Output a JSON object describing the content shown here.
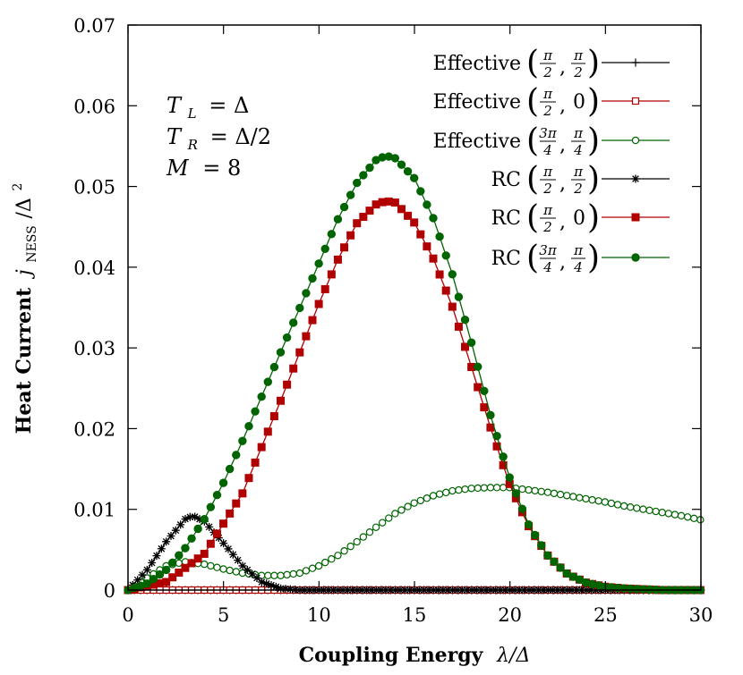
{
  "chart_data": {
    "type": "line",
    "title": "",
    "xlabel": "Coupling Energy λ/Δ",
    "ylabel": "Heat Current j_NESS/Δ²",
    "xlabel_parts": {
      "text": "Coupling Energy",
      "math": "λ/Δ"
    },
    "ylabel_parts": {
      "text": "Heat Current",
      "math_j": "j",
      "math_sub": "NESS",
      "math_rest": "/Δ",
      "math_sup": "2"
    },
    "xlim": [
      0,
      30
    ],
    "ylim": [
      0,
      0.07
    ],
    "xticks": [
      0,
      5,
      10,
      15,
      20,
      25,
      30
    ],
    "xtick_labels": [
      "0",
      "5",
      "10",
      "15",
      "20",
      "25",
      "30"
    ],
    "yticks": [
      0,
      0.01,
      0.02,
      0.03,
      0.04,
      0.05,
      0.06,
      0.07
    ],
    "ytick_labels": [
      "0",
      "0.01",
      "0.02",
      "0.03",
      "0.04",
      "0.05",
      "0.06",
      "0.07"
    ],
    "grid": false,
    "legend_position": "top-right",
    "annotation": [
      "T_L = Δ",
      "T_R = Δ/2",
      "M = 8"
    ],
    "annotation_parts": [
      {
        "sym": "T",
        "sub": "L",
        "rhs": "= Δ"
      },
      {
        "sym": "T",
        "sub": "R",
        "rhs": "= Δ/2"
      },
      {
        "sym": "M",
        "sub": "",
        "rhs": "= 8"
      }
    ],
    "series": [
      {
        "name": "Effective (π/2, π/2)",
        "label": "Effective",
        "frac_a": [
          "π",
          "2"
        ],
        "frac_b": [
          "π",
          "2"
        ],
        "color": "#000000",
        "marker": "plus",
        "x": [
          0,
          3,
          6,
          9,
          12,
          15,
          18,
          21,
          24,
          27,
          30
        ],
        "y": [
          0,
          0,
          0,
          0,
          0,
          0,
          0,
          0,
          0,
          0,
          0
        ]
      },
      {
        "name": "Effective (π/2, 0)",
        "label": "Effective",
        "frac_a": [
          "π",
          "2"
        ],
        "frac_b": [
          "0",
          ""
        ],
        "color": "#b00000",
        "marker": "open-square",
        "x": [
          0,
          3,
          6,
          9,
          12,
          15,
          18,
          21,
          24,
          27,
          30
        ],
        "y": [
          0,
          0,
          0,
          0,
          0,
          0,
          0,
          0,
          0,
          0,
          0
        ]
      },
      {
        "name": "Effective (3π/4, π/4)",
        "label": "Effective",
        "frac_a": [
          "3π",
          "4"
        ],
        "frac_b": [
          "π",
          "4"
        ],
        "color": "#006400",
        "marker": "open-circle",
        "x": [
          0,
          1,
          2,
          3,
          4,
          5,
          6,
          7,
          8,
          9,
          10,
          11,
          12,
          13,
          14,
          15,
          16,
          17,
          18,
          19,
          20,
          21,
          22,
          23,
          24,
          25,
          26,
          27,
          28,
          29,
          30
        ],
        "y": [
          0,
          0.0015,
          0.003,
          0.0035,
          0.0032,
          0.0026,
          0.0021,
          0.0018,
          0.0018,
          0.0021,
          0.003,
          0.0043,
          0.006,
          0.0078,
          0.0095,
          0.0108,
          0.0117,
          0.0123,
          0.0126,
          0.0127,
          0.0127,
          0.0124,
          0.0121,
          0.0117,
          0.0113,
          0.0109,
          0.0104,
          0.01,
          0.0096,
          0.0092,
          0.0087
        ]
      },
      {
        "name": "RC (π/2, π/2)",
        "label": "RC",
        "frac_a": [
          "π",
          "2"
        ],
        "frac_b": [
          "π",
          "2"
        ],
        "color": "#000000",
        "marker": "star",
        "x": [
          0,
          1,
          2,
          3,
          3.4,
          4,
          5,
          6,
          7,
          8,
          9,
          10,
          12,
          15,
          20,
          25,
          30
        ],
        "y": [
          0,
          0.0025,
          0.006,
          0.0088,
          0.0092,
          0.0085,
          0.0058,
          0.003,
          0.001,
          0.0002,
          0,
          0,
          0,
          0,
          0,
          0,
          0
        ]
      },
      {
        "name": "RC (π/2, 0)",
        "label": "RC",
        "frac_a": [
          "π",
          "2"
        ],
        "frac_b": [
          "0",
          ""
        ],
        "color": "#b00000",
        "marker": "filled-square",
        "x": [
          0,
          2,
          4,
          6,
          8,
          10,
          11,
          12,
          13,
          13.5,
          14,
          15,
          16,
          17,
          18,
          19,
          20,
          21,
          22,
          23,
          24,
          25,
          26,
          27,
          28,
          30
        ],
        "y": [
          0,
          0.001,
          0.0045,
          0.012,
          0.0235,
          0.0355,
          0.041,
          0.0455,
          0.0478,
          0.0482,
          0.048,
          0.0455,
          0.041,
          0.035,
          0.0275,
          0.02,
          0.013,
          0.0078,
          0.0042,
          0.002,
          0.0009,
          0.0004,
          0.0002,
          0.0001,
          0,
          0
        ]
      },
      {
        "name": "RC (3π/4, π/4)",
        "label": "RC",
        "frac_a": [
          "3π",
          "4"
        ],
        "frac_b": [
          "π",
          "4"
        ],
        "color": "#006400",
        "marker": "filled-circle",
        "x": [
          0,
          1,
          2,
          3,
          4,
          5,
          6,
          7,
          8,
          9,
          10,
          11,
          12,
          13,
          13.5,
          14,
          15,
          16,
          17,
          18,
          19,
          20,
          21,
          22,
          23,
          24,
          25,
          26,
          27,
          28,
          30
        ],
        "y": [
          0,
          0.0008,
          0.0025,
          0.0052,
          0.0088,
          0.0133,
          0.0185,
          0.024,
          0.0295,
          0.035,
          0.0405,
          0.046,
          0.0505,
          0.0533,
          0.0538,
          0.0535,
          0.051,
          0.046,
          0.039,
          0.0305,
          0.0215,
          0.0138,
          0.008,
          0.0042,
          0.002,
          0.0009,
          0.0004,
          0.0002,
          0.0001,
          0,
          0
        ]
      }
    ]
  }
}
